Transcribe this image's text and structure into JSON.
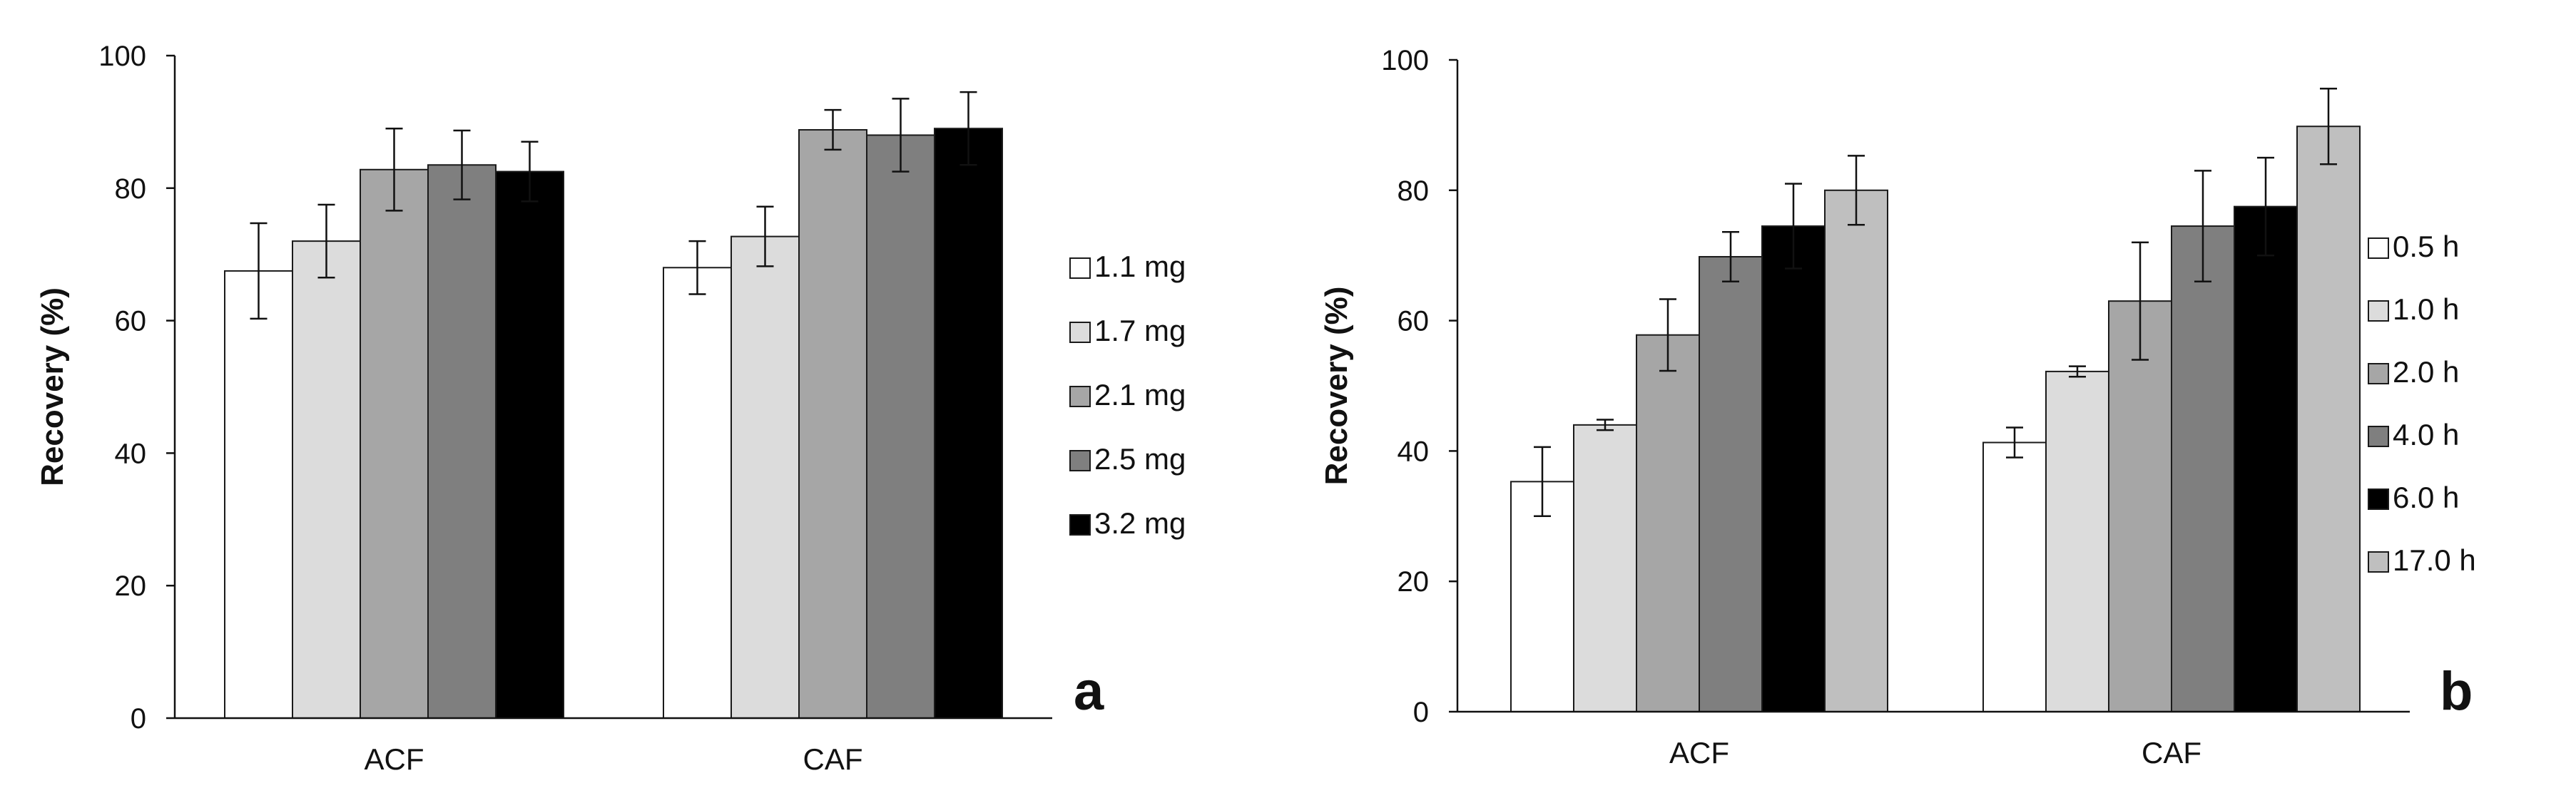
{
  "chart_data": [
    {
      "type": "bar",
      "panel_label": "a",
      "title": "",
      "xlabel": "",
      "ylabel": "Recovery (%)",
      "ylim": [
        0,
        100
      ],
      "yticks": [
        "0",
        "20",
        "40",
        "60",
        "80",
        "100"
      ],
      "grid": false,
      "legend_position": "right",
      "categories": [
        "ACF",
        "CAF"
      ],
      "series": [
        {
          "name": "1.1 mg",
          "color": "#ffffff",
          "values": [
            67.5,
            68.0
          ],
          "errors": [
            7.2,
            4.0
          ]
        },
        {
          "name": "1.7 mg",
          "color": "#dcdcdc",
          "values": [
            72.0,
            72.7
          ],
          "errors": [
            5.5,
            4.5
          ]
        },
        {
          "name": "2.1 mg",
          "color": "#a6a6a6",
          "values": [
            82.8,
            88.8
          ],
          "errors": [
            6.2,
            3.0
          ]
        },
        {
          "name": "2.5 mg",
          "color": "#7f7f7f",
          "values": [
            83.5,
            88.0
          ],
          "errors": [
            5.2,
            5.5
          ]
        },
        {
          "name": "3.2 mg",
          "color": "#000000",
          "values": [
            82.5,
            89.0
          ],
          "errors": [
            4.5,
            5.5
          ]
        }
      ]
    },
    {
      "type": "bar",
      "panel_label": "b",
      "title": "",
      "xlabel": "",
      "ylabel": "Recovery (%)",
      "ylim": [
        0,
        100
      ],
      "yticks": [
        "0",
        "20",
        "40",
        "60",
        "80",
        "100"
      ],
      "grid": false,
      "legend_position": "right",
      "categories": [
        "ACF",
        "CAF"
      ],
      "series": [
        {
          "name": "0.5 h",
          "color": "#ffffff",
          "values": [
            35.3,
            41.3
          ],
          "errors": [
            5.3,
            2.3
          ]
        },
        {
          "name": "1.0 h",
          "color": "#dcdcdc",
          "values": [
            44.0,
            52.2
          ],
          "errors": [
            0.8,
            0.8
          ]
        },
        {
          "name": "2.0 h",
          "color": "#a6a6a6",
          "values": [
            57.8,
            63.0
          ],
          "errors": [
            5.5,
            9.0
          ]
        },
        {
          "name": "4.0 h",
          "color": "#7f7f7f",
          "values": [
            69.8,
            74.5
          ],
          "errors": [
            3.8,
            8.5
          ]
        },
        {
          "name": "6.0 h",
          "color": "#000000",
          "values": [
            74.5,
            77.5
          ],
          "errors": [
            6.5,
            7.5
          ]
        },
        {
          "name": "17.0 h",
          "color": "#bfbfbf",
          "values": [
            80.0,
            89.8
          ],
          "errors": [
            5.3,
            5.8
          ]
        }
      ]
    }
  ]
}
